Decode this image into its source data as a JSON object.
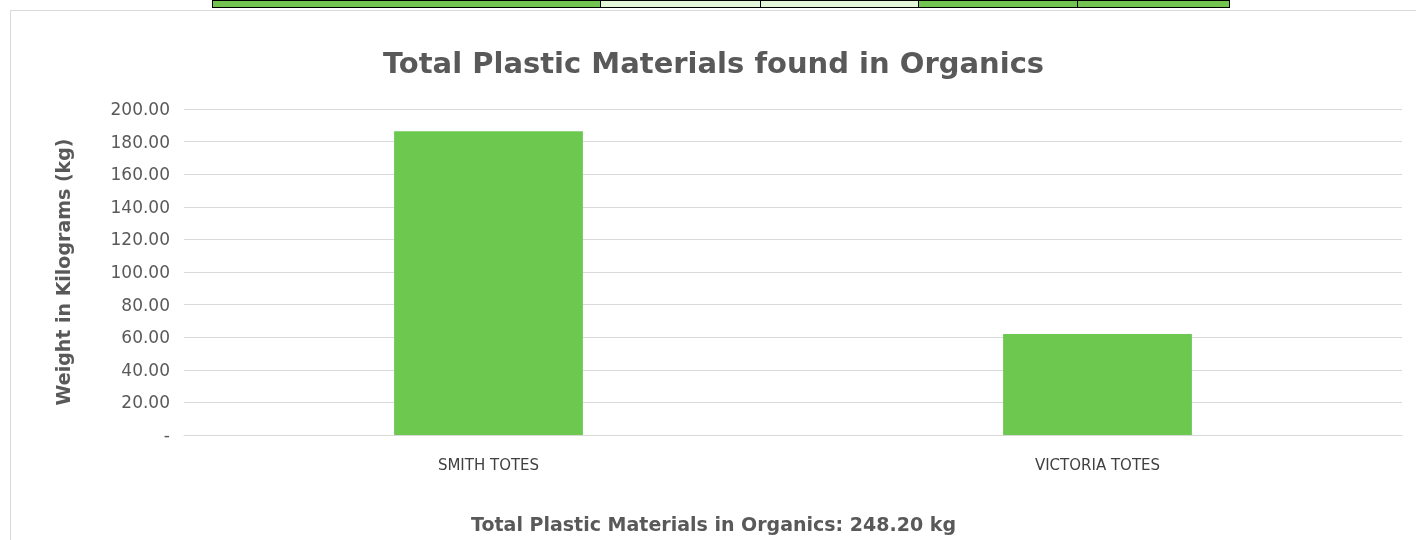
{
  "chart_data": {
    "type": "bar",
    "title": "Total Plastic Materials found in Organics",
    "ylabel": "Weight in Kilograms (kg)",
    "categories": [
      "SMITH TOTES",
      "VICTORIA TOTES"
    ],
    "values": [
      186.3,
      61.9
    ],
    "color": "#6cc84f",
    "ylim": [
      0,
      200
    ],
    "yticks": [
      {
        "value": 0,
        "label": "-"
      },
      {
        "value": 20,
        "label": "20.00"
      },
      {
        "value": 40,
        "label": "40.00"
      },
      {
        "value": 60,
        "label": "60.00"
      },
      {
        "value": 80,
        "label": "80.00"
      },
      {
        "value": 100,
        "label": "100.00"
      },
      {
        "value": 120,
        "label": "120.00"
      },
      {
        "value": 140,
        "label": "140.00"
      },
      {
        "value": 160,
        "label": "160.00"
      },
      {
        "value": 180,
        "label": "180.00"
      },
      {
        "value": 200,
        "label": "200.00"
      }
    ],
    "grid": true,
    "annotations": [
      "Total Plastic Materials in Organics: 248.20 kg"
    ]
  }
}
